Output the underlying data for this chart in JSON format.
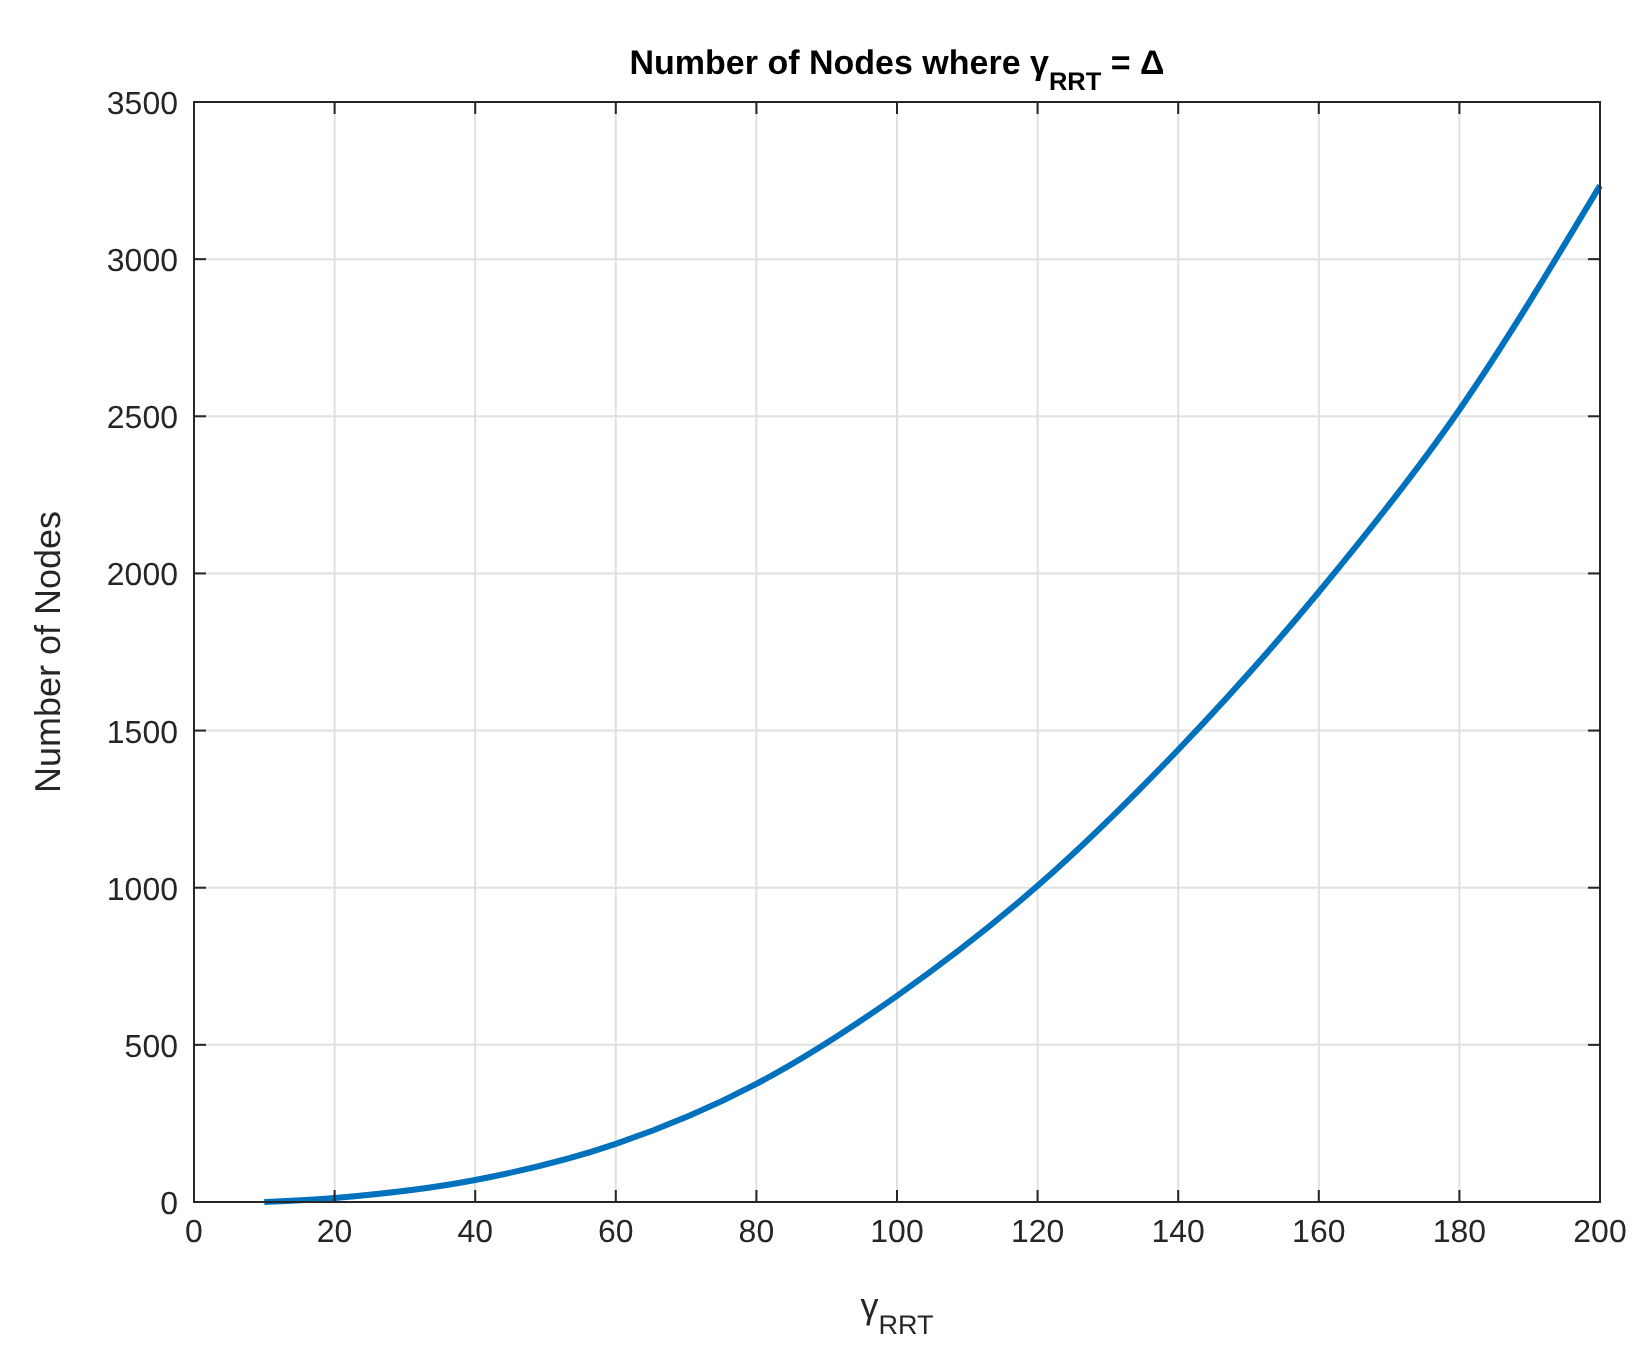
{
  "chart_data": {
    "type": "line",
    "title": "Number of Nodes where γ$_{RRT}$ = Δ",
    "xlabel": "γ$_{RRT}$",
    "ylabel": "Number of Nodes",
    "x": [
      10,
      20,
      40,
      60,
      80,
      100,
      120,
      140,
      160,
      180,
      200
    ],
    "series": [
      {
        "color": "#0072bd",
        "values": [
          0,
          13,
          70,
          185,
          376,
          656,
          1006,
          1439,
          1941,
          2521,
          3234
        ]
      }
    ],
    "xlim": [
      0,
      200
    ],
    "xticks": [
      0,
      20,
      40,
      60,
      80,
      100,
      120,
      140,
      160,
      180,
      200
    ],
    "ylim": [
      0,
      3500
    ],
    "yticks": [
      0,
      500,
      1000,
      1500,
      2000,
      2500,
      3000,
      3500
    ],
    "grid": true,
    "line_style": "solid"
  }
}
